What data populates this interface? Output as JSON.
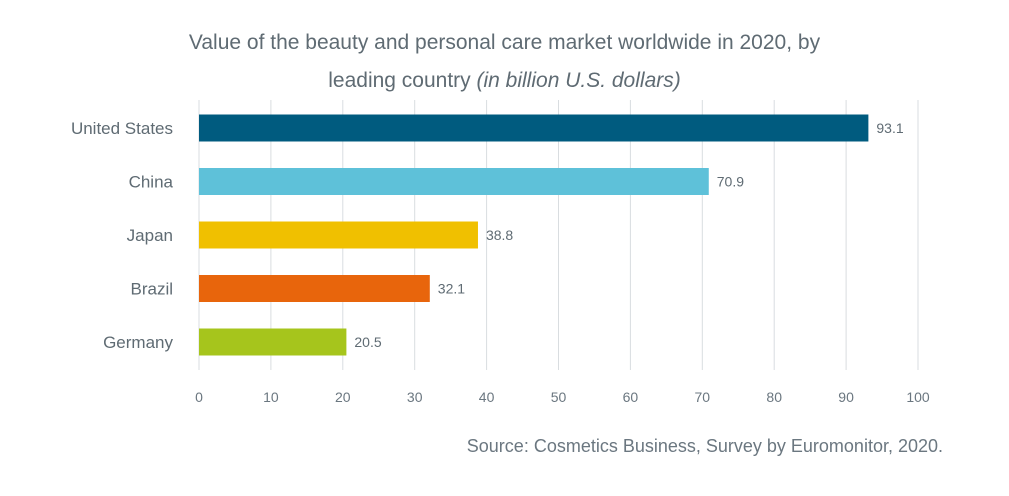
{
  "chart_data": {
    "type": "bar",
    "orientation": "horizontal",
    "title_main": "Value of the beauty and personal care market worldwide in 2020, by",
    "title_line2": "leading country ",
    "title_italic": "(in billion U.S. dollars)",
    "categories": [
      "United States",
      "China",
      "Japan",
      "Brazil",
      "Germany"
    ],
    "values": [
      93.1,
      70.9,
      38.8,
      32.1,
      20.5
    ],
    "value_labels": [
      "93.1",
      "70.9",
      "38.8",
      "32.1",
      "20.5"
    ],
    "colors": [
      "#005b7f",
      "#5ec1d9",
      "#f0c000",
      "#e8650c",
      "#a6c51c"
    ],
    "xlim": [
      0,
      100
    ],
    "xticks": [
      0,
      10,
      20,
      30,
      40,
      50,
      60,
      70,
      80,
      90,
      100
    ],
    "xlabel": "",
    "ylabel": "",
    "grid": true
  },
  "source": "Source: Cosmetics Business, Survey by Euromonitor, 2020."
}
